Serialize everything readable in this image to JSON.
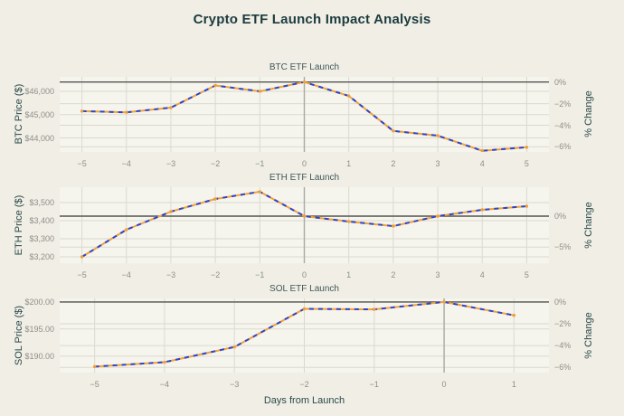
{
  "title": "Crypto ETF Launch Impact Analysis",
  "xlabel": "Days from Launch",
  "colors": {
    "background": "#f0eee5",
    "plot_background": "#f5f4ed",
    "line_blue": "#2e44cc",
    "line_orange": "#f0a23a",
    "marker_orange": "#ef9f38",
    "grid": "#dcdacf",
    "zero_line": "#55554f",
    "launch_line": "#a9a9a2",
    "title_text": "#1c3b3e",
    "axis_text": "#2b4a4b",
    "subplot_title_text": "#40595a",
    "tick_text": "#8f8f89"
  },
  "chart_data": [
    {
      "type": "line",
      "title": "BTC ETF Launch",
      "ylabel_left": "BTC Price ($)",
      "ylabel_right": "% Change",
      "x": [
        -5,
        -4,
        -3,
        -2,
        -1,
        0,
        1,
        2,
        3,
        4,
        5
      ],
      "prices": [
        45150,
        45100,
        45300,
        46250,
        46000,
        46400,
        45800,
        44300,
        44100,
        43450,
        43600
      ],
      "launch_price": 46400,
      "pct_change": [
        -2.69,
        -2.8,
        -2.37,
        -0.32,
        -0.86,
        0.0,
        -1.29,
        -4.53,
        -4.96,
        -6.36,
        -6.03
      ],
      "xlim": [
        -5.5,
        5.5
      ],
      "ylim": [
        43400,
        46620
      ],
      "yticks_left": {
        "values": [
          44000,
          45000,
          46000
        ],
        "labels": [
          "$44,000",
          "$45,000",
          "$46,000"
        ]
      },
      "yticks_right": {
        "values": [
          0,
          -2,
          -4,
          -6
        ],
        "labels": [
          "0%",
          "−2%",
          "−4%",
          "−6%"
        ]
      },
      "xticks": {
        "values": [
          -5,
          -4,
          -3,
          -2,
          -1,
          0,
          1,
          2,
          3,
          4,
          5
        ],
        "labels": [
          "−5",
          "−4",
          "−3",
          "−2",
          "−1",
          "0",
          "1",
          "2",
          "3",
          "4",
          "5"
        ]
      }
    },
    {
      "type": "line",
      "title": "ETH ETF Launch",
      "ylabel_left": "ETH Price ($)",
      "ylabel_right": "% Change",
      "x": [
        -5,
        -4,
        -3,
        -2,
        -1,
        0,
        1,
        2,
        3,
        4,
        5
      ],
      "prices": [
        3200,
        3350,
        3450,
        3520,
        3560,
        3425,
        3395,
        3370,
        3425,
        3460,
        3480
      ],
      "launch_price": 3425,
      "pct_change": [
        -6.57,
        -2.19,
        0.73,
        2.77,
        3.94,
        0.0,
        -0.88,
        -1.61,
        0.0,
        1.02,
        1.61
      ],
      "xlim": [
        -5.5,
        5.5
      ],
      "ylim": [
        3165,
        3585
      ],
      "yticks_left": {
        "values": [
          3200,
          3300,
          3400,
          3500
        ],
        "labels": [
          "$3,200",
          "$3,300",
          "$3,400",
          "$3,500"
        ]
      },
      "yticks_right": {
        "values": [
          0,
          -5
        ],
        "labels": [
          "0%",
          "−5%"
        ]
      },
      "xticks": {
        "values": [
          -5,
          -4,
          -3,
          -2,
          -1,
          0,
          1,
          2,
          3,
          4,
          5
        ],
        "labels": [
          "−5",
          "−4",
          "−3",
          "−2",
          "−1",
          "0",
          "1",
          "2",
          "3",
          "4",
          "5"
        ]
      }
    },
    {
      "type": "line",
      "title": "SOL ETF Launch",
      "ylabel_left": "SOL Price ($)",
      "ylabel_right": "% Change",
      "x": [
        -5,
        -4,
        -3,
        -2,
        -1,
        0,
        1
      ],
      "prices": [
        188.1,
        188.9,
        191.7,
        198.7,
        198.6,
        199.95,
        197.5
      ],
      "launch_price": 199.95,
      "pct_change": [
        -5.93,
        -5.53,
        -4.13,
        -0.63,
        -0.68,
        0.0,
        -1.23
      ],
      "xlim": [
        -5.5,
        1.5
      ],
      "ylim": [
        187,
        200.6
      ],
      "yticks_left": {
        "values": [
          190,
          195,
          200
        ],
        "labels": [
          "$190.00",
          "$195.00",
          "$200.00"
        ]
      },
      "yticks_right": {
        "values": [
          0,
          -2,
          -4,
          -6
        ],
        "labels": [
          "0%",
          "−2%",
          "−4%",
          "−6%"
        ]
      },
      "xticks": {
        "values": [
          -5,
          -4,
          -3,
          -2,
          -1,
          0,
          1
        ],
        "labels": [
          "−5",
          "−4",
          "−3",
          "−2",
          "−1",
          "0",
          "1"
        ]
      }
    }
  ]
}
